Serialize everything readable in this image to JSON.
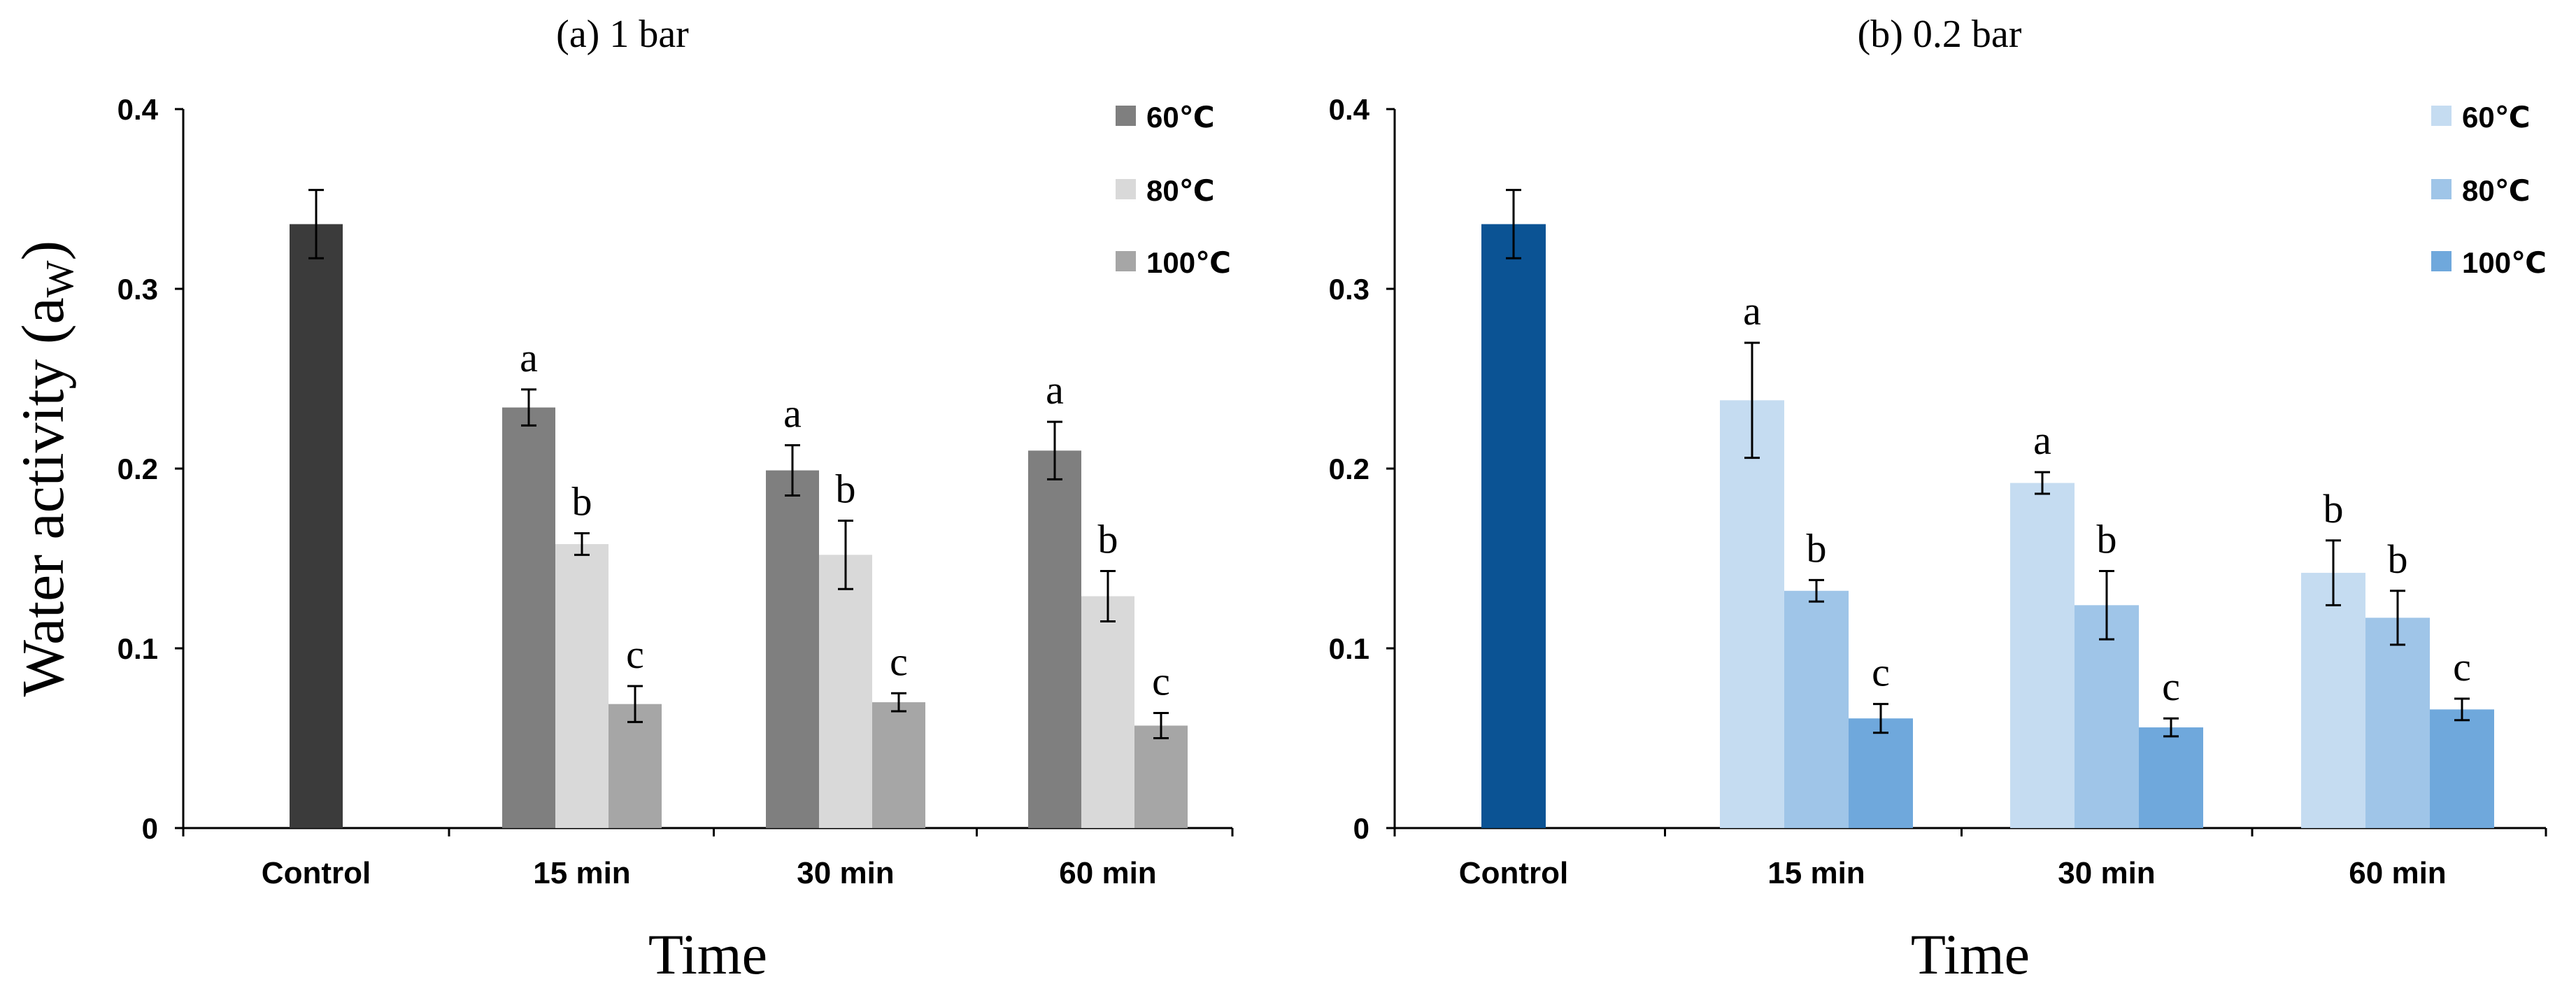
{
  "chart_data": [
    {
      "type": "bar",
      "title": "(a) 1 bar",
      "xlabel": "Time",
      "ylabel": "Water activity (a",
      "ylabel_sub": "W",
      "ylabel_close": ")",
      "ylim": [
        0,
        0.4
      ],
      "yticks": [
        "0",
        "0.1",
        "0.2",
        "0.3",
        "0.4"
      ],
      "grid": false,
      "legend_position": "top-right",
      "categories": [
        "Control",
        "15 min",
        "30 min",
        "60 min"
      ],
      "control": {
        "value": 0.336,
        "error": 0.019,
        "color": "#3b3b3b"
      },
      "series": [
        {
          "name": "60℃",
          "color": "#7f7f7f",
          "values": [
            null,
            0.234,
            0.199,
            0.21
          ],
          "errors": [
            null,
            0.01,
            0.014,
            0.016
          ],
          "letters": [
            null,
            "a",
            "a",
            "a"
          ]
        },
        {
          "name": "80℃",
          "color": "#d9d9d9",
          "values": [
            null,
            0.158,
            0.152,
            0.129
          ],
          "errors": [
            null,
            0.006,
            0.019,
            0.014
          ],
          "letters": [
            null,
            "b",
            "b",
            "b"
          ]
        },
        {
          "name": "100℃",
          "color": "#a6a6a6",
          "values": [
            null,
            0.069,
            0.07,
            0.057
          ],
          "errors": [
            null,
            0.01,
            0.005,
            0.007
          ],
          "letters": [
            null,
            "c",
            "c",
            "c"
          ]
        }
      ]
    },
    {
      "type": "bar",
      "title": "(b) 0.2 bar",
      "xlabel": "Time",
      "ylabel": "",
      "ylim": [
        0,
        0.4
      ],
      "yticks": [
        "0",
        "0.1",
        "0.2",
        "0.3",
        "0.4"
      ],
      "grid": false,
      "legend_position": "top-right",
      "categories": [
        "Control",
        "15 min",
        "30 min",
        "60 min"
      ],
      "control": {
        "value": 0.336,
        "error": 0.019,
        "color": "#0b5394"
      },
      "series": [
        {
          "name": "60℃",
          "color": "#c5dcf1",
          "values": [
            null,
            0.238,
            0.192,
            0.142
          ],
          "errors": [
            null,
            0.032,
            0.006,
            0.018
          ],
          "letters": [
            null,
            "a",
            "a",
            "b"
          ]
        },
        {
          "name": "80℃",
          "color": "#9fc5e8",
          "values": [
            null,
            0.132,
            0.124,
            0.117
          ],
          "errors": [
            null,
            0.006,
            0.019,
            0.015
          ],
          "letters": [
            null,
            "b",
            "b",
            "b"
          ]
        },
        {
          "name": "100℃",
          "color": "#6fa8dc",
          "values": [
            null,
            0.061,
            0.056,
            0.066
          ],
          "errors": [
            null,
            0.008,
            0.005,
            0.006
          ],
          "letters": [
            null,
            "c",
            "c",
            "c"
          ]
        }
      ]
    }
  ]
}
